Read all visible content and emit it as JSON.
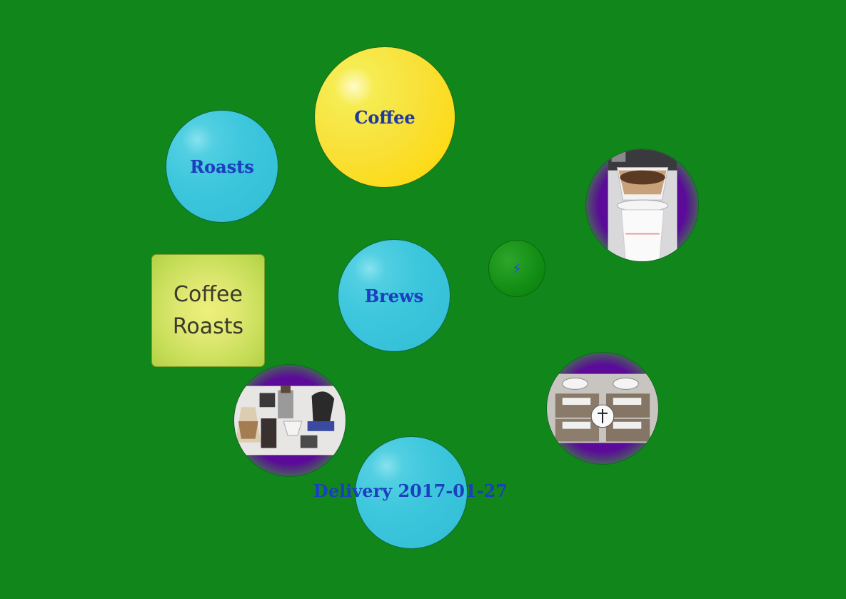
{
  "nodes": {
    "coffee": {
      "label": "Coffee"
    },
    "roasts": {
      "label": "Roasts"
    },
    "brews": {
      "label": "Brews"
    },
    "coffee_roasts": {
      "label_line1": "Coffee",
      "label_line2": "Roasts"
    },
    "delivery": {
      "label": "Delivery 2017-01-27"
    },
    "action": {
      "icon": "lightning-bolt-icon",
      "glyph": "⚡"
    }
  },
  "photos": [
    {
      "name": "pour-over-dripper-photo"
    },
    {
      "name": "brewing-equipment-photo"
    },
    {
      "name": "coffee-bean-bags-photo"
    }
  ],
  "colors": {
    "background": "#11861a",
    "bubble_blue": "#3ec7dd",
    "bubble_yellow": "#f8e13a",
    "label_blue": "#1b3fbf",
    "photo_ring": "#5c0a99"
  }
}
